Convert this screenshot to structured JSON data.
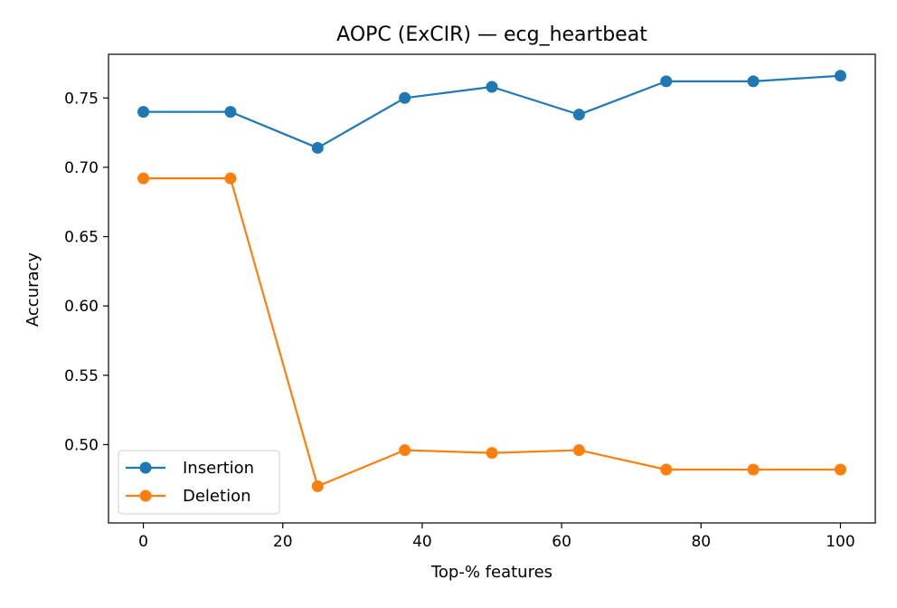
{
  "chart_data": {
    "type": "line",
    "title": "AOPC (ExCIR) — ecg_heartbeat",
    "xlabel": "Top-% features",
    "ylabel": "Accuracy",
    "x": [
      0,
      12.5,
      25,
      37.5,
      50,
      62.5,
      75,
      87.5,
      100
    ],
    "xlim": [
      -5,
      105
    ],
    "ylim": [
      0.4435,
      0.7815
    ],
    "xticks": [
      0,
      20,
      40,
      60,
      80,
      100
    ],
    "xtick_labels": [
      "0",
      "20",
      "40",
      "60",
      "80",
      "100"
    ],
    "yticks": [
      0.5,
      0.55,
      0.6,
      0.65,
      0.7,
      0.75
    ],
    "ytick_labels": [
      "0.50",
      "0.55",
      "0.60",
      "0.65",
      "0.70",
      "0.75"
    ],
    "grid": false,
    "legend_position": "lower-left",
    "series": [
      {
        "name": "Insertion",
        "color": "#1f77b4",
        "marker": "circle",
        "values": [
          0.74,
          0.74,
          0.714,
          0.75,
          0.758,
          0.738,
          0.762,
          0.762,
          0.766
        ]
      },
      {
        "name": "Deletion",
        "color": "#ff7f0e",
        "marker": "circle",
        "values": [
          0.692,
          0.692,
          0.47,
          0.496,
          0.494,
          0.496,
          0.482,
          0.482,
          0.482
        ]
      }
    ]
  }
}
